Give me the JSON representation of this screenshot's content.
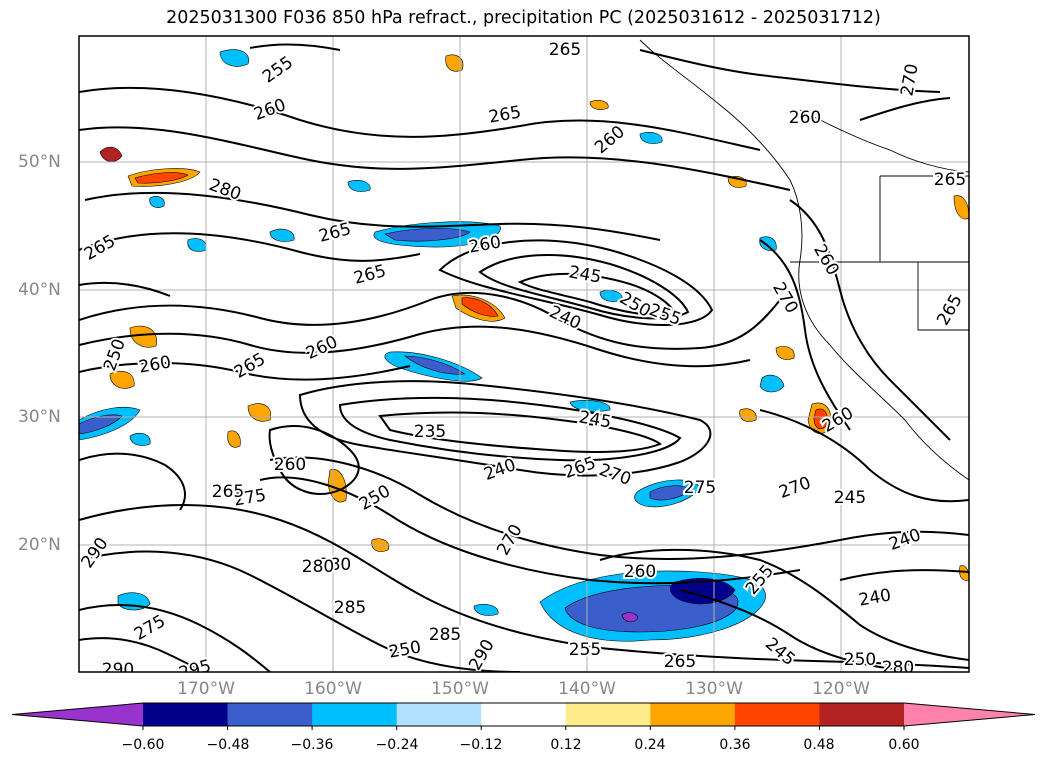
{
  "title": "2025031300 F036 850 hPa refract., precipitation PC (2025031612 - 2025031712)",
  "lat_labels": [
    "50°N",
    "40°N",
    "30°N",
    "20°N"
  ],
  "lon_labels": [
    "170°W",
    "160°W",
    "150°W",
    "140°W",
    "130°W",
    "120°W"
  ],
  "colorbar": {
    "colors": [
      "#9a32cd",
      "#00008b",
      "#3a5fcd",
      "#00bfff",
      "#b0e2ff",
      "#ffffff",
      "#ffec8b",
      "#ffa500",
      "#ff4500",
      "#b22222",
      "#ff82ab"
    ],
    "tick_labels": [
      "−0.60",
      "−0.48",
      "−0.36",
      "−0.24",
      "−0.12",
      "0.12",
      "0.24",
      "0.36",
      "0.48",
      "0.60"
    ],
    "extend": "both"
  },
  "contour_labels": [
    "255",
    "260",
    "265",
    "260",
    "260",
    "280",
    "265",
    "265",
    "265",
    "265",
    "260",
    "260",
    "245",
    "240",
    "250",
    "255",
    "270",
    "260",
    "250",
    "260",
    "275",
    "280",
    "250",
    "260",
    "235",
    "245",
    "265",
    "270",
    "240",
    "250",
    "265",
    "270",
    "275",
    "270",
    "255",
    "245",
    "240",
    "280",
    "240",
    "290",
    "265",
    "285",
    "285",
    "290",
    "275",
    "295",
    "290",
    "260",
    "255",
    "265",
    "245",
    "250",
    "280",
    "265",
    "270",
    "260",
    "265"
  ],
  "colors": {
    "contour": "#000000",
    "grid": "#b0b0b0",
    "coast": "#000000"
  }
}
